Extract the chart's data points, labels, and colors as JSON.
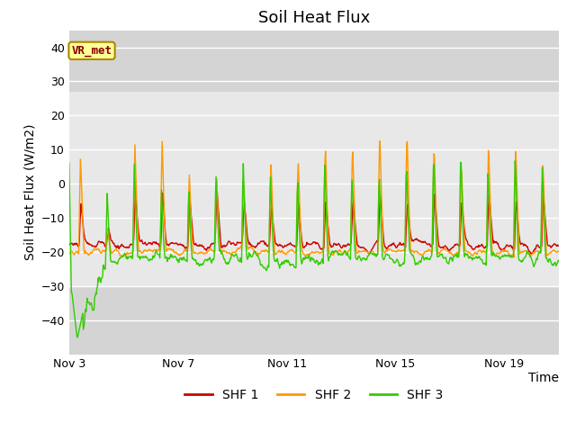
{
  "title": "Soil Heat Flux",
  "ylabel": "Soil Heat Flux (W/m2)",
  "xlabel": "Time",
  "ylim": [
    -50,
    45
  ],
  "yticks": [
    -40,
    -30,
    -20,
    -10,
    0,
    10,
    20,
    30,
    40
  ],
  "xtick_labels": [
    "Nov 3",
    "Nov 7",
    "Nov 11",
    "Nov 15",
    "Nov 19"
  ],
  "xtick_positions": [
    3,
    7,
    11,
    15,
    19
  ],
  "bg_color": "#ffffff",
  "plot_bg_outer": "#d4d4d4",
  "plot_bg_inner": "#e8e8e8",
  "inner_band_ymin": -30,
  "inner_band_ymax": 27,
  "line_colors": [
    "#cc0000",
    "#ff9900",
    "#33cc00"
  ],
  "legend_labels": [
    "SHF 1",
    "SHF 2",
    "SHF 3"
  ],
  "tag_text": "VR_met",
  "tag_bg": "#ffff99",
  "tag_border": "#aa8800",
  "tag_text_color": "#880000",
  "start_day": 3,
  "n_days": 18,
  "title_fontsize": 13,
  "axis_label_fontsize": 10,
  "tick_fontsize": 9,
  "legend_fontsize": 10,
  "hline_color": "#ffffff",
  "hline_lw": 1.0
}
